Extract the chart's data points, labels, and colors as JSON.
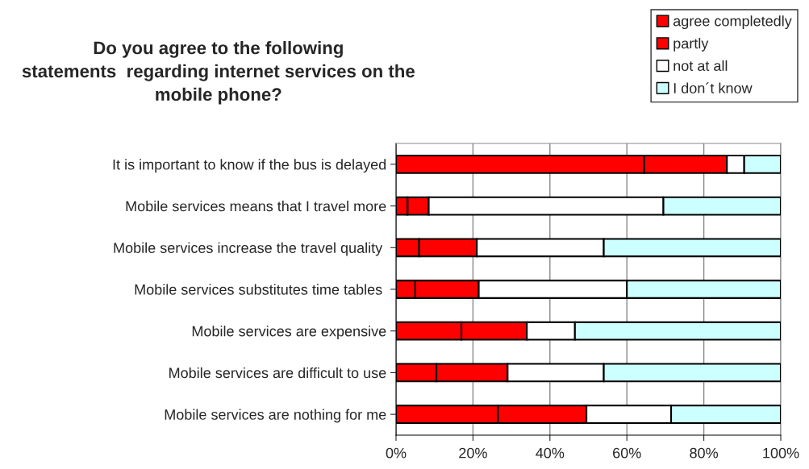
{
  "chart_data": {
    "type": "bar",
    "orientation": "horizontal",
    "stacked": true,
    "title": "Do you agree to the following\nstatements  regarding internet services on the\nmobile phone?",
    "categories": [
      "It is important to know if the bus is delayed",
      "Mobile services means that I travel more",
      "Mobile services increase the travel quality ",
      "Mobile services substitutes time tables ",
      "Mobile services are expensive",
      "Mobile services are difficult to use",
      "Mobile services are nothing for me"
    ],
    "series": [
      {
        "name": "agree completedly",
        "color": "#ff0000",
        "values": [
          64.5,
          3,
          6,
          5,
          17,
          10.5,
          26.5
        ]
      },
      {
        "name": "partly",
        "color": "#ff0000",
        "values": [
          21.5,
          5.5,
          15,
          16.5,
          17,
          18.5,
          23
        ]
      },
      {
        "name": "not at all",
        "color": "#ffffff",
        "values": [
          4.5,
          61,
          33,
          38.5,
          12.5,
          25,
          22
        ]
      },
      {
        "name": "I don´t know",
        "color": "#ccffff",
        "values": [
          9.5,
          30.5,
          46,
          40,
          53.5,
          46,
          28.5
        ]
      }
    ],
    "xlim": [
      0,
      100
    ],
    "xticks": [
      {
        "value": 0,
        "label": "0%"
      },
      {
        "value": 20,
        "label": "20%"
      },
      {
        "value": 40,
        "label": "40%"
      },
      {
        "value": 60,
        "label": "60%"
      },
      {
        "value": 80,
        "label": "80%"
      },
      {
        "value": 100,
        "label": "100%"
      }
    ],
    "grid": "x",
    "legend": "top right"
  }
}
